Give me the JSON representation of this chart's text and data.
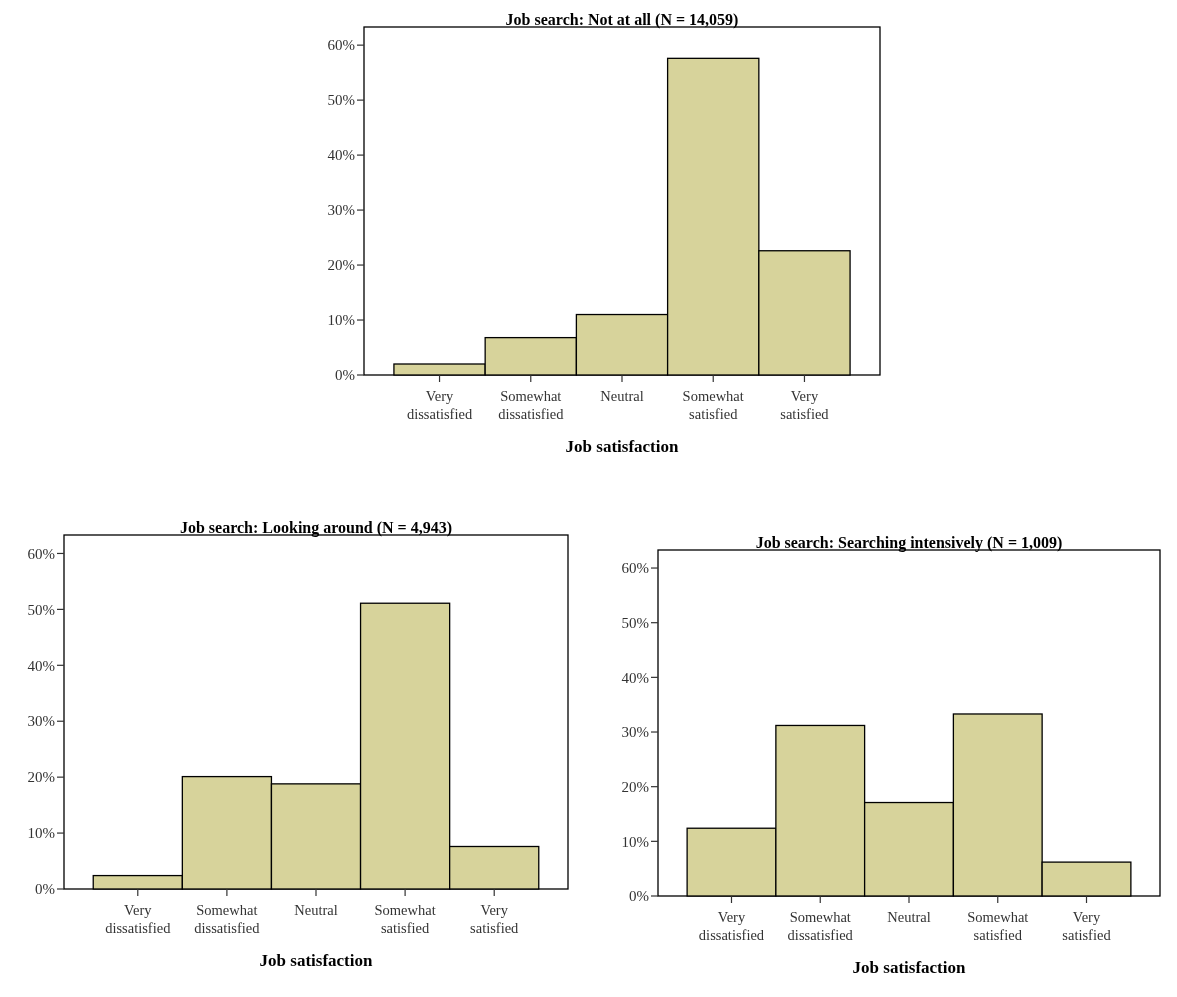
{
  "chart_data": [
    {
      "type": "bar",
      "title": "Job search: Not at all (N = 14,059)",
      "xlabel": "Job satisfaction",
      "categories": [
        "Very dissatisfied",
        "Somewhat dissatisfied",
        "Neutral",
        "Somewhat satisfied",
        "Very satisfied"
      ],
      "values": [
        2.0,
        6.8,
        11.0,
        57.6,
        22.6
      ],
      "color": "#d7d39b",
      "ylim": [
        0,
        63.3
      ],
      "yticks": [
        {
          "value": 0,
          "label": "0%"
        },
        {
          "value": 10,
          "label": "10%"
        },
        {
          "value": 20,
          "label": "20%"
        },
        {
          "value": 30,
          "label": "30%"
        },
        {
          "value": 40,
          "label": "40%"
        },
        {
          "value": 50,
          "label": "50%"
        },
        {
          "value": 60,
          "label": "60%"
        }
      ]
    },
    {
      "type": "bar",
      "title": "Job search: Looking around (N = 4,943)",
      "xlabel": "Job satisfaction",
      "categories": [
        "Very dissatisfied",
        "Somewhat dissatisfied",
        "Neutral",
        "Somewhat satisfied",
        "Very satisfied"
      ],
      "values": [
        2.4,
        20.1,
        18.8,
        51.1,
        7.6
      ],
      "color": "#d7d39b",
      "ylim": [
        0,
        63.3
      ],
      "yticks": [
        {
          "value": 0,
          "label": "0%"
        },
        {
          "value": 10,
          "label": "10%"
        },
        {
          "value": 20,
          "label": "20%"
        },
        {
          "value": 30,
          "label": "30%"
        },
        {
          "value": 40,
          "label": "40%"
        },
        {
          "value": 50,
          "label": "50%"
        },
        {
          "value": 60,
          "label": "60%"
        }
      ]
    },
    {
      "type": "bar",
      "title": "Job search: Searching intensively (N = 1,009)",
      "xlabel": "Job satisfaction",
      "categories": [
        "Very dissatisfied",
        "Somewhat dissatisfied",
        "Neutral",
        "Somewhat satisfied",
        "Very satisfied"
      ],
      "values": [
        12.4,
        31.2,
        17.1,
        33.3,
        6.2
      ],
      "color": "#d7d39b",
      "ylim": [
        0,
        63.3
      ],
      "yticks": [
        {
          "value": 0,
          "label": "0%"
        },
        {
          "value": 10,
          "label": "10%"
        },
        {
          "value": 20,
          "label": "20%"
        },
        {
          "value": 30,
          "label": "30%"
        },
        {
          "value": 40,
          "label": "40%"
        },
        {
          "value": 50,
          "label": "50%"
        },
        {
          "value": 60,
          "label": "60%"
        }
      ]
    }
  ]
}
